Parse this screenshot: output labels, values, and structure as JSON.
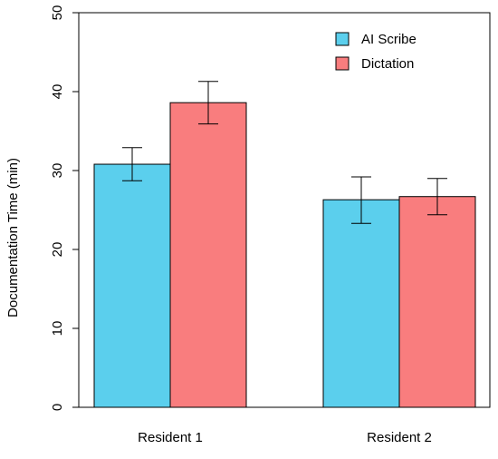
{
  "chart_data": {
    "type": "bar",
    "title": "",
    "xlabel": "",
    "ylabel": "Documentation Time (min)",
    "ylim": [
      0,
      50
    ],
    "yticks": [
      0,
      10,
      20,
      30,
      40,
      50
    ],
    "categories": [
      "Resident 1",
      "Resident 2"
    ],
    "series": [
      {
        "name": "AI Scribe",
        "color": "#5bcfed",
        "values": [
          30.8,
          26.3
        ],
        "error_low": [
          28.7,
          23.3
        ],
        "error_high": [
          32.9,
          29.2
        ]
      },
      {
        "name": "Dictation",
        "color": "#f97d7e",
        "values": [
          38.6,
          26.7
        ],
        "error_low": [
          35.9,
          24.4
        ],
        "error_high": [
          41.3,
          29.0
        ]
      }
    ],
    "legend_position": "top-right",
    "grid": false
  }
}
